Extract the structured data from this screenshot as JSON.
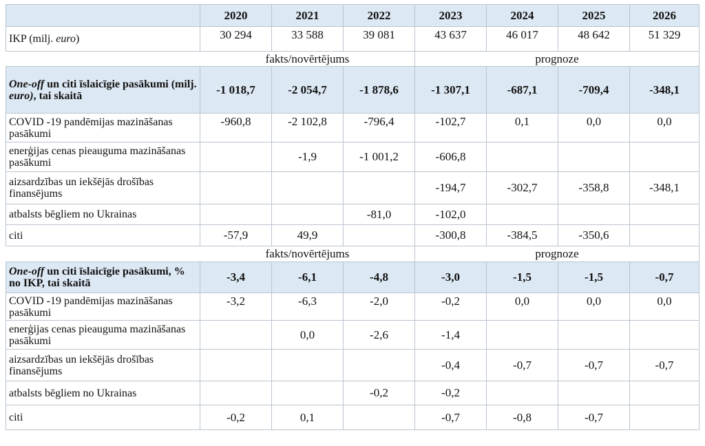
{
  "header": {
    "years": [
      "2020",
      "2021",
      "2022",
      "2023",
      "2024",
      "2025",
      "2026"
    ]
  },
  "gdp": {
    "label_main": "IKP (milj. ",
    "label_em": "euro",
    "label_end": ")",
    "values": [
      "30 294",
      "33 588",
      "39 081",
      "43 637",
      "46 017",
      "48 642",
      "51 329"
    ]
  },
  "section1": {
    "fact_label": "fakts/novērtējums",
    "forecast_label": "prognoze",
    "total": {
      "label_em": "One-off",
      "label_mid": " un citi īslaicīgie pasākumi  (milj. ",
      "label_em2": "euro)",
      "label_end": ", tai skaitā",
      "values": [
        "-1 018,7",
        "-2 054,7",
        "-1 878,6",
        "-1 307,1",
        "-687,1",
        "-709,4",
        "-348,1"
      ]
    },
    "rows": [
      {
        "label": "COVID -19 pandēmijas mazināšanas pasākumi",
        "values": [
          "-960,8",
          "-2 102,8",
          "-796,4",
          "-102,7",
          "0,1",
          "0,0",
          "0,0"
        ]
      },
      {
        "label": "enerģijas cenas pieauguma mazināšanas pasākumi",
        "values": [
          "",
          "-1,9",
          "-1 001,2",
          "-606,8",
          "",
          "",
          ""
        ]
      },
      {
        "label": "aizsardzības un iekšējās drošības finansējums",
        "values": [
          "",
          "",
          "",
          "-194,7",
          "-302,7",
          "-358,8",
          "-348,1"
        ]
      },
      {
        "label": "atbalsts bēgliem no Ukrainas",
        "values": [
          "",
          "",
          "-81,0",
          "-102,0",
          "",
          "",
          ""
        ]
      },
      {
        "label": "citi",
        "values": [
          "-57,9",
          "49,9",
          "",
          "-300,8",
          "-384,5",
          "-350,6",
          ""
        ]
      }
    ]
  },
  "section2": {
    "fact_label": "fakts/novērtējums",
    "forecast_label": "prognoze",
    "total": {
      "label_em": "One-off",
      "label_end": " un citi īslaicīgie pasākumi, % no IKP, tai skaitā",
      "values": [
        "-3,4",
        "-6,1",
        "-4,8",
        "-3,0",
        "-1,5",
        "-1,5",
        "-0,7"
      ]
    },
    "rows": [
      {
        "label": "COVID -19 pandēmijas mazināšanas pasākumi",
        "values": [
          "-3,2",
          "-6,3",
          "-2,0",
          "-0,2",
          "0,0",
          "0,0",
          "0,0"
        ]
      },
      {
        "label": "enerģijas cenas pieauguma mazināšanas pasākumi",
        "values": [
          "",
          "0,0",
          "-2,6",
          "-1,4",
          "",
          "",
          ""
        ]
      },
      {
        "label": "aizsardzības un iekšējās drošības finansējums",
        "values": [
          "",
          "",
          "",
          "-0,4",
          "-0,7",
          "-0,7",
          "-0,7"
        ]
      },
      {
        "label": "atbalsts bēgliem no Ukrainas",
        "values": [
          "",
          "",
          "-0,2",
          "-0,2",
          "",
          "",
          ""
        ]
      },
      {
        "label": "citi",
        "values": [
          "-0,2",
          "0,1",
          "",
          "-0,7",
          "-0,8",
          "-0,7",
          ""
        ]
      }
    ]
  }
}
